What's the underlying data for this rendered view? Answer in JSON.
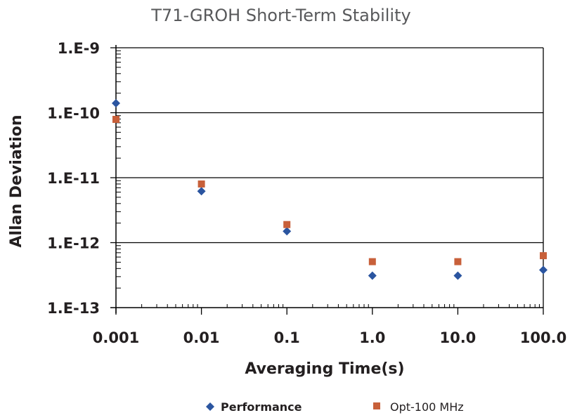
{
  "chart_data": {
    "type": "scatter",
    "title": "T71-GROH  Short-Term Stability",
    "xlabel": "Averaging Time(s)",
    "ylabel": "Allan Deviation",
    "xscale": "log",
    "yscale": "log",
    "xlim": [
      0.001,
      100
    ],
    "ylim": [
      1e-13,
      1e-09
    ],
    "x_ticks": [
      0.001,
      0.01,
      0.1,
      1,
      10,
      100
    ],
    "x_tick_labels": [
      "0.001",
      "0.01",
      "0.1",
      "1.0",
      "10.0",
      "100.0"
    ],
    "y_ticks": [
      1e-09,
      1e-10,
      1e-11,
      1e-12,
      1e-13
    ],
    "y_tick_labels": [
      "1.E-9",
      "1.E-10",
      "1.E-11",
      "1.E-12",
      "1.E-13"
    ],
    "grid": "horizontal major",
    "legend_position": "bottom",
    "series": [
      {
        "name": "Performance",
        "marker": "diamond",
        "color": "#2B55A0",
        "x": [
          0.001,
          0.01,
          0.1,
          1,
          10,
          100
        ],
        "y": [
          1.4e-10,
          6.2e-12,
          1.5e-12,
          3.1e-13,
          3.1e-13,
          3.8e-13
        ]
      },
      {
        "name": "Opt-100 MHz",
        "marker": "square",
        "color": "#C8603A",
        "x": [
          0.001,
          0.01,
          0.1,
          1,
          10,
          100
        ],
        "y": [
          7.9e-11,
          8e-12,
          1.9e-12,
          5.1e-13,
          5.1e-13,
          6.3e-13
        ]
      }
    ]
  }
}
